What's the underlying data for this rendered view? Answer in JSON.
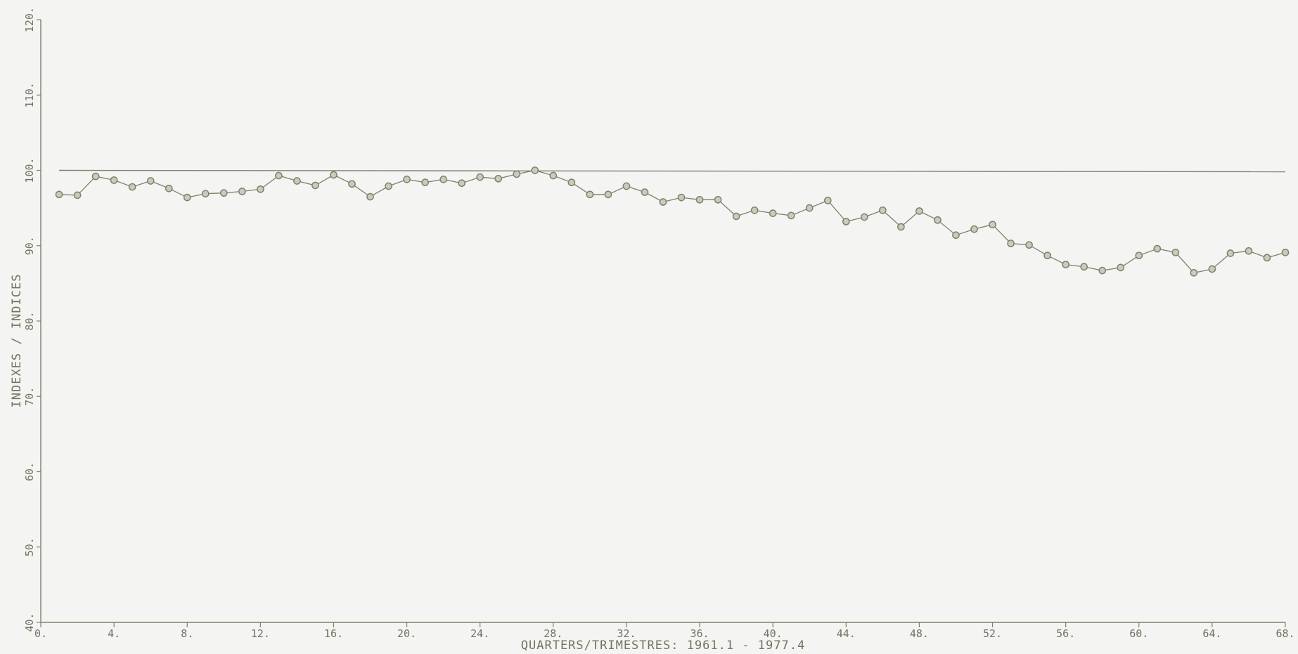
{
  "chart_data": {
    "type": "line",
    "title": "",
    "xlabel": "QUARTERS/TRIMESTRES: 1961.1 - 1977.4",
    "ylabel": "INDEXES / INDICES",
    "xlim": [
      0,
      68
    ],
    "ylim": [
      40,
      120
    ],
    "x_ticks": [
      0,
      4,
      8,
      12,
      16,
      20,
      24,
      28,
      32,
      36,
      40,
      44,
      48,
      52,
      56,
      60,
      64,
      68
    ],
    "x_tick_labels": [
      "0.",
      "4.",
      "8.",
      "12.",
      "16.",
      "20.",
      "24.",
      "28.",
      "32.",
      "36.",
      "40.",
      "44.",
      "48.",
      "52.",
      "56.",
      "60.",
      "64.",
      "68."
    ],
    "y_ticks": [
      40,
      50,
      60,
      70,
      80,
      90,
      100,
      110,
      120
    ],
    "y_tick_labels": [
      "40.",
      "50.",
      "60.",
      "70.",
      "80.",
      "90.",
      "100.",
      "110.",
      "120."
    ],
    "grid": false,
    "reference_line": {
      "y": 100
    },
    "series": [
      {
        "x": [
          1,
          2,
          3,
          4,
          5,
          6,
          7,
          8,
          9,
          10,
          11,
          12,
          13,
          14,
          15,
          16,
          17,
          18,
          19,
          20,
          21,
          22,
          23,
          24,
          25,
          26,
          27,
          28,
          29,
          30,
          31,
          32,
          33,
          34,
          35,
          36,
          37,
          38,
          39,
          40,
          41,
          42,
          43,
          44,
          45,
          46,
          47,
          48,
          49,
          50,
          51,
          52,
          53,
          54,
          55,
          56,
          57,
          58,
          59,
          60,
          61,
          62,
          63,
          64,
          65,
          66,
          67,
          68
        ],
        "values": [
          96.8,
          96.7,
          99.2,
          98.7,
          97.8,
          98.6,
          97.6,
          96.4,
          96.9,
          97.0,
          97.2,
          97.5,
          99.3,
          98.6,
          98.0,
          99.4,
          98.2,
          96.5,
          97.9,
          98.8,
          98.4,
          98.8,
          98.3,
          99.1,
          98.9,
          99.5,
          100.0,
          99.3,
          98.4,
          96.8,
          96.8,
          97.9,
          97.1,
          95.8,
          96.4,
          96.1,
          96.1,
          93.9,
          94.7,
          94.3,
          94.0,
          95.0,
          96.0,
          93.2,
          93.8,
          94.7,
          92.5,
          94.6,
          93.4,
          91.4,
          92.2,
          92.8,
          90.3,
          90.1,
          88.7,
          87.5,
          87.2,
          86.7,
          87.1,
          88.7,
          89.6,
          89.1,
          86.4,
          86.9,
          89.0,
          89.3,
          88.4,
          89.1
        ],
        "color": "#7c826c",
        "marker": "circle"
      }
    ]
  }
}
